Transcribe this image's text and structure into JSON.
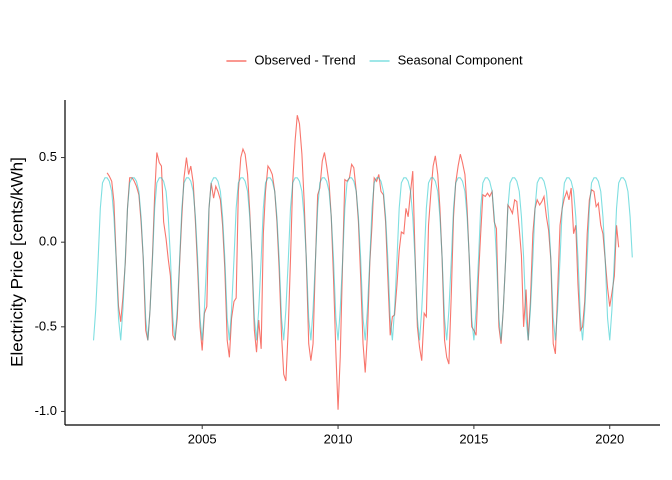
{
  "chart_data": {
    "type": "line",
    "y_label": "Electricity Price [cents/kWh]",
    "legend_position": "top",
    "grid": false,
    "xlim": [
      1999.95,
      2021.85
    ],
    "ylim": [
      -1.08,
      0.84
    ],
    "xticks": [
      2005,
      2010,
      2015,
      2020
    ],
    "yticks": [
      0.5,
      {
        "value": 0,
        "label": "0.0"
      },
      -0.5,
      {
        "value": -1,
        "label": "-1.0"
      }
    ],
    "x": [
      2001,
      2001.08,
      2001.17,
      2001.25,
      2001.33,
      2001.42,
      2001.5,
      2001.58,
      2001.67,
      2001.75,
      2001.83,
      2001.92,
      2002,
      2002.08,
      2002.17,
      2002.25,
      2002.33,
      2002.42,
      2002.5,
      2002.58,
      2002.67,
      2002.75,
      2002.83,
      2002.92,
      2003,
      2003.08,
      2003.17,
      2003.25,
      2003.33,
      2003.42,
      2003.5,
      2003.58,
      2003.67,
      2003.75,
      2003.83,
      2003.92,
      2004,
      2004.08,
      2004.17,
      2004.25,
      2004.33,
      2004.42,
      2004.5,
      2004.58,
      2004.67,
      2004.75,
      2004.83,
      2004.92,
      2005,
      2005.08,
      2005.17,
      2005.25,
      2005.33,
      2005.42,
      2005.5,
      2005.58,
      2005.67,
      2005.75,
      2005.83,
      2005.92,
      2006,
      2006.08,
      2006.17,
      2006.25,
      2006.33,
      2006.42,
      2006.5,
      2006.58,
      2006.67,
      2006.75,
      2006.83,
      2006.92,
      2007,
      2007.08,
      2007.17,
      2007.25,
      2007.33,
      2007.42,
      2007.5,
      2007.58,
      2007.67,
      2007.75,
      2007.83,
      2007.92,
      2008,
      2008.08,
      2008.17,
      2008.25,
      2008.33,
      2008.42,
      2008.5,
      2008.58,
      2008.67,
      2008.75,
      2008.83,
      2008.92,
      2009,
      2009.08,
      2009.17,
      2009.25,
      2009.33,
      2009.42,
      2009.5,
      2009.58,
      2009.67,
      2009.75,
      2009.83,
      2009.92,
      2010,
      2010.08,
      2010.17,
      2010.25,
      2010.33,
      2010.42,
      2010.5,
      2010.58,
      2010.67,
      2010.75,
      2010.83,
      2010.92,
      2011,
      2011.08,
      2011.17,
      2011.25,
      2011.33,
      2011.42,
      2011.5,
      2011.58,
      2011.67,
      2011.75,
      2011.83,
      2011.92,
      2012,
      2012.08,
      2012.17,
      2012.25,
      2012.33,
      2012.42,
      2012.5,
      2012.58,
      2012.67,
      2012.75,
      2012.83,
      2012.92,
      2013,
      2013.08,
      2013.17,
      2013.25,
      2013.33,
      2013.42,
      2013.5,
      2013.58,
      2013.67,
      2013.75,
      2013.83,
      2013.92,
      2014,
      2014.08,
      2014.17,
      2014.25,
      2014.33,
      2014.42,
      2014.5,
      2014.58,
      2014.67,
      2014.75,
      2014.83,
      2014.92,
      2015,
      2015.08,
      2015.17,
      2015.25,
      2015.33,
      2015.42,
      2015.5,
      2015.58,
      2015.67,
      2015.75,
      2015.83,
      2015.92,
      2016,
      2016.08,
      2016.17,
      2016.25,
      2016.33,
      2016.42,
      2016.5,
      2016.58,
      2016.67,
      2016.75,
      2016.83,
      2016.92,
      2017,
      2017.08,
      2017.17,
      2017.25,
      2017.33,
      2017.42,
      2017.5,
      2017.58,
      2017.67,
      2017.75,
      2017.83,
      2017.92,
      2018,
      2018.08,
      2018.17,
      2018.25,
      2018.33,
      2018.42,
      2018.5,
      2018.58,
      2018.67,
      2018.75,
      2018.83,
      2018.92,
      2019,
      2019.08,
      2019.17,
      2019.25,
      2019.33,
      2019.42,
      2019.5,
      2019.58,
      2019.67,
      2019.75,
      2019.83,
      2019.92,
      2020,
      2020.08,
      2020.17,
      2020.25,
      2020.33,
      2020.42,
      2020.5,
      2020.58,
      2020.67,
      2020.75,
      2020.83
    ],
    "series": [
      {
        "name": "Observed - Trend",
        "color": "#F8766D",
        "alpha": 1,
        "values": [
          null,
          null,
          null,
          null,
          null,
          null,
          0.41,
          0.39,
          0.36,
          0.24,
          -0.08,
          -0.38,
          -0.47,
          -0.33,
          -0.12,
          0.2,
          0.38,
          0.38,
          0.36,
          0.33,
          0.28,
          0.12,
          -0.1,
          -0.52,
          -0.58,
          -0.4,
          -0.08,
          0.28,
          0.53,
          0.47,
          0.45,
          0.12,
          0.02,
          -0.1,
          -0.2,
          -0.55,
          -0.58,
          -0.45,
          -0.12,
          0.15,
          0.38,
          0.5,
          0.4,
          0.45,
          0.35,
          0.12,
          -0.15,
          -0.5,
          -0.64,
          -0.42,
          -0.38,
          0.2,
          0.35,
          0.26,
          0.33,
          0.3,
          0.25,
          0.1,
          -0.15,
          -0.58,
          -0.68,
          -0.45,
          -0.35,
          -0.33,
          0.3,
          0.5,
          0.55,
          0.52,
          0.4,
          0.18,
          -0.1,
          -0.52,
          -0.65,
          -0.46,
          -0.63,
          0.05,
          0.3,
          0.45,
          0.43,
          0.4,
          0.3,
          0.12,
          -0.15,
          -0.55,
          -0.78,
          -0.82,
          -0.5,
          -0.1,
          0.35,
          0.6,
          0.75,
          0.7,
          0.52,
          0.25,
          -0.1,
          -0.6,
          -0.7,
          -0.6,
          -0.1,
          0.28,
          0.32,
          0.48,
          0.53,
          0.45,
          0.35,
          0.15,
          -0.2,
          -0.65,
          -0.99,
          -0.68,
          -0.1,
          0.37,
          0.36,
          0.38,
          0.46,
          0.44,
          0.3,
          0.12,
          -0.2,
          -0.6,
          -0.77,
          -0.55,
          -0.12,
          0.1,
          0.38,
          0.36,
          0.4,
          0.3,
          0.28,
          0.12,
          -0.2,
          -0.55,
          -0.44,
          -0.43,
          -0.25,
          -0.05,
          0.06,
          0.05,
          0.2,
          0.15,
          0.3,
          0.42,
          -0.05,
          -0.5,
          -0.62,
          -0.7,
          -0.42,
          -0.44,
          0.1,
          0.3,
          0.45,
          0.51,
          0.4,
          0.2,
          -0.1,
          -0.58,
          -0.68,
          -0.72,
          -0.3,
          0.15,
          0.35,
          0.45,
          0.52,
          0.47,
          0.4,
          0.2,
          -0.1,
          -0.5,
          -0.52,
          -0.55,
          -0.2,
          0.05,
          0.28,
          0.27,
          0.29,
          0.27,
          0.3,
          0.12,
          0.08,
          -0.5,
          -0.6,
          -0.4,
          -0.1,
          0.22,
          0.2,
          0.17,
          0.25,
          0.24,
          0.08,
          -0.08,
          -0.5,
          -0.28,
          -0.58,
          -0.35,
          0.05,
          0.2,
          0.25,
          0.22,
          0.24,
          0.27,
          0.15,
          0.07,
          -0.1,
          -0.6,
          -0.66,
          -0.3,
          0.1,
          0.2,
          0.26,
          0.3,
          0.25,
          0.32,
          0.05,
          0.1,
          -0.25,
          -0.52,
          -0.5,
          -0.35,
          0.05,
          0.25,
          0.31,
          0.3,
          0.21,
          0.23,
          0.1,
          0.05,
          -0.1,
          -0.27,
          -0.38,
          -0.3,
          -0.2,
          0.1,
          -0.03,
          null,
          null,
          null,
          null,
          null,
          null
        ]
      },
      {
        "name": "Seasonal Component",
        "color": "#00BFC4",
        "alpha": 0.5,
        "values": [
          -0.58,
          -0.4,
          -0.1,
          0.2,
          0.35,
          0.38,
          0.38,
          0.36,
          0.3,
          0.15,
          -0.09,
          -0.45,
          -0.58,
          -0.4,
          -0.1,
          0.2,
          0.35,
          0.38,
          0.38,
          0.36,
          0.3,
          0.15,
          -0.09,
          -0.45,
          -0.58,
          -0.4,
          -0.1,
          0.2,
          0.35,
          0.38,
          0.38,
          0.36,
          0.3,
          0.15,
          -0.09,
          -0.45,
          -0.58,
          -0.4,
          -0.1,
          0.2,
          0.35,
          0.38,
          0.38,
          0.36,
          0.3,
          0.15,
          -0.09,
          -0.45,
          -0.58,
          -0.4,
          -0.1,
          0.2,
          0.35,
          0.38,
          0.38,
          0.36,
          0.3,
          0.15,
          -0.09,
          -0.45,
          -0.58,
          -0.4,
          -0.1,
          0.2,
          0.35,
          0.38,
          0.38,
          0.36,
          0.3,
          0.15,
          -0.09,
          -0.45,
          -0.58,
          -0.4,
          -0.1,
          0.2,
          0.35,
          0.38,
          0.38,
          0.36,
          0.3,
          0.15,
          -0.09,
          -0.45,
          -0.58,
          -0.4,
          -0.1,
          0.2,
          0.35,
          0.38,
          0.38,
          0.36,
          0.3,
          0.15,
          -0.09,
          -0.45,
          -0.58,
          -0.4,
          -0.1,
          0.2,
          0.35,
          0.38,
          0.38,
          0.36,
          0.3,
          0.15,
          -0.09,
          -0.45,
          -0.58,
          -0.4,
          -0.1,
          0.2,
          0.35,
          0.38,
          0.38,
          0.36,
          0.3,
          0.15,
          -0.09,
          -0.45,
          -0.58,
          -0.4,
          -0.1,
          0.2,
          0.35,
          0.38,
          0.38,
          0.36,
          0.3,
          0.15,
          -0.09,
          -0.45,
          -0.58,
          -0.4,
          -0.1,
          0.2,
          0.35,
          0.38,
          0.38,
          0.36,
          0.3,
          0.15,
          -0.09,
          -0.45,
          -0.58,
          -0.4,
          -0.1,
          0.2,
          0.35,
          0.38,
          0.38,
          0.36,
          0.3,
          0.15,
          -0.09,
          -0.45,
          -0.58,
          -0.4,
          -0.1,
          0.2,
          0.35,
          0.38,
          0.38,
          0.36,
          0.3,
          0.15,
          -0.09,
          -0.45,
          -0.58,
          -0.4,
          -0.1,
          0.2,
          0.35,
          0.38,
          0.38,
          0.36,
          0.3,
          0.15,
          -0.09,
          -0.45,
          -0.58,
          -0.4,
          -0.1,
          0.2,
          0.35,
          0.38,
          0.38,
          0.36,
          0.3,
          0.15,
          -0.09,
          -0.45,
          -0.58,
          -0.4,
          -0.1,
          0.2,
          0.35,
          0.38,
          0.38,
          0.36,
          0.3,
          0.15,
          -0.09,
          -0.45,
          -0.58,
          -0.4,
          -0.1,
          0.2,
          0.35,
          0.38,
          0.38,
          0.36,
          0.3,
          0.15,
          -0.09,
          -0.45,
          -0.58,
          -0.4,
          -0.1,
          0.2,
          0.35,
          0.38,
          0.38,
          0.36,
          0.3,
          0.15,
          -0.09,
          -0.45,
          -0.58,
          -0.4,
          -0.1,
          0.2,
          0.35,
          0.38,
          0.38,
          0.36,
          0.3,
          0.15,
          -0.09
        ]
      }
    ]
  }
}
